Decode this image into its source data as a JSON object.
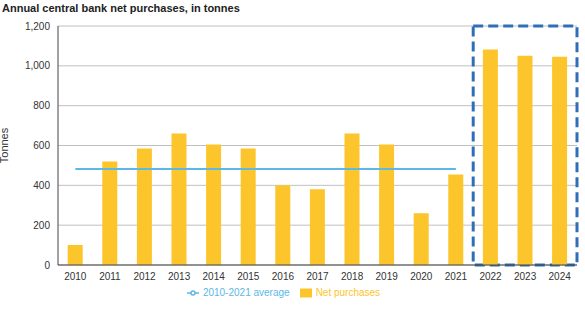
{
  "chart_data": {
    "type": "bar",
    "title": "Annual central bank net purchases, in tonnes",
    "y_label": "Tonnes",
    "categories": [
      "2010",
      "2011",
      "2012",
      "2013",
      "2014",
      "2015",
      "2016",
      "2017",
      "2018",
      "2019",
      "2020",
      "2021",
      "2022",
      "2023",
      "2024"
    ],
    "series": [
      {
        "name": "Net purchases",
        "type": "bar",
        "color": "#fcc52b",
        "values": [
          100,
          520,
          585,
          660,
          605,
          585,
          400,
          380,
          660,
          605,
          260,
          455,
          1082,
          1051,
          1045
        ]
      },
      {
        "name": "2010-2021 average",
        "type": "line",
        "color": "#5db8e6",
        "values": [
          482,
          482,
          482,
          482,
          482,
          482,
          482,
          482,
          482,
          482,
          482,
          482,
          null,
          null,
          null
        ]
      }
    ],
    "ylim": [
      0,
      1200
    ],
    "yticks": [
      0,
      200,
      400,
      600,
      800,
      {
        "value": 1000,
        "label": "1,000"
      },
      {
        "value": 1200,
        "label": "1,200"
      }
    ],
    "grid": true,
    "legend": "bottom"
  }
}
